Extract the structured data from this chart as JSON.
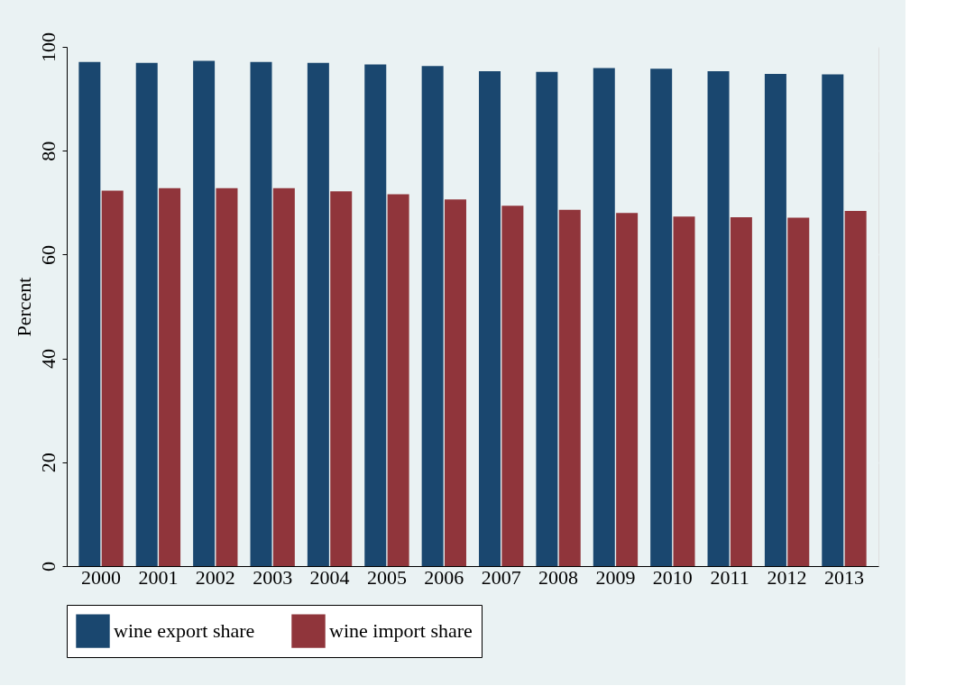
{
  "chart_data": {
    "type": "bar",
    "ylabel": "Percent",
    "categories": [
      "2000",
      "2001",
      "2002",
      "2003",
      "2004",
      "2005",
      "2006",
      "2007",
      "2008",
      "2009",
      "2010",
      "2011",
      "2012",
      "2013"
    ],
    "series": [
      {
        "name": "wine export share",
        "color": "#1a476f",
        "values": [
          97.1,
          96.9,
          97.3,
          97.1,
          96.9,
          96.6,
          96.3,
          95.3,
          95.2,
          95.9,
          95.8,
          95.3,
          94.8,
          94.7
        ]
      },
      {
        "name": "wine import share",
        "color": "#90353b",
        "values": [
          72.3,
          72.8,
          72.8,
          72.8,
          72.2,
          71.6,
          70.6,
          69.4,
          68.6,
          68.0,
          67.3,
          67.2,
          67.1,
          68.4
        ]
      }
    ],
    "ylim": [
      0,
      100
    ],
    "yticks": [
      0,
      20,
      40,
      60,
      80,
      100
    ],
    "grid": "y",
    "legend": "bottom"
  }
}
